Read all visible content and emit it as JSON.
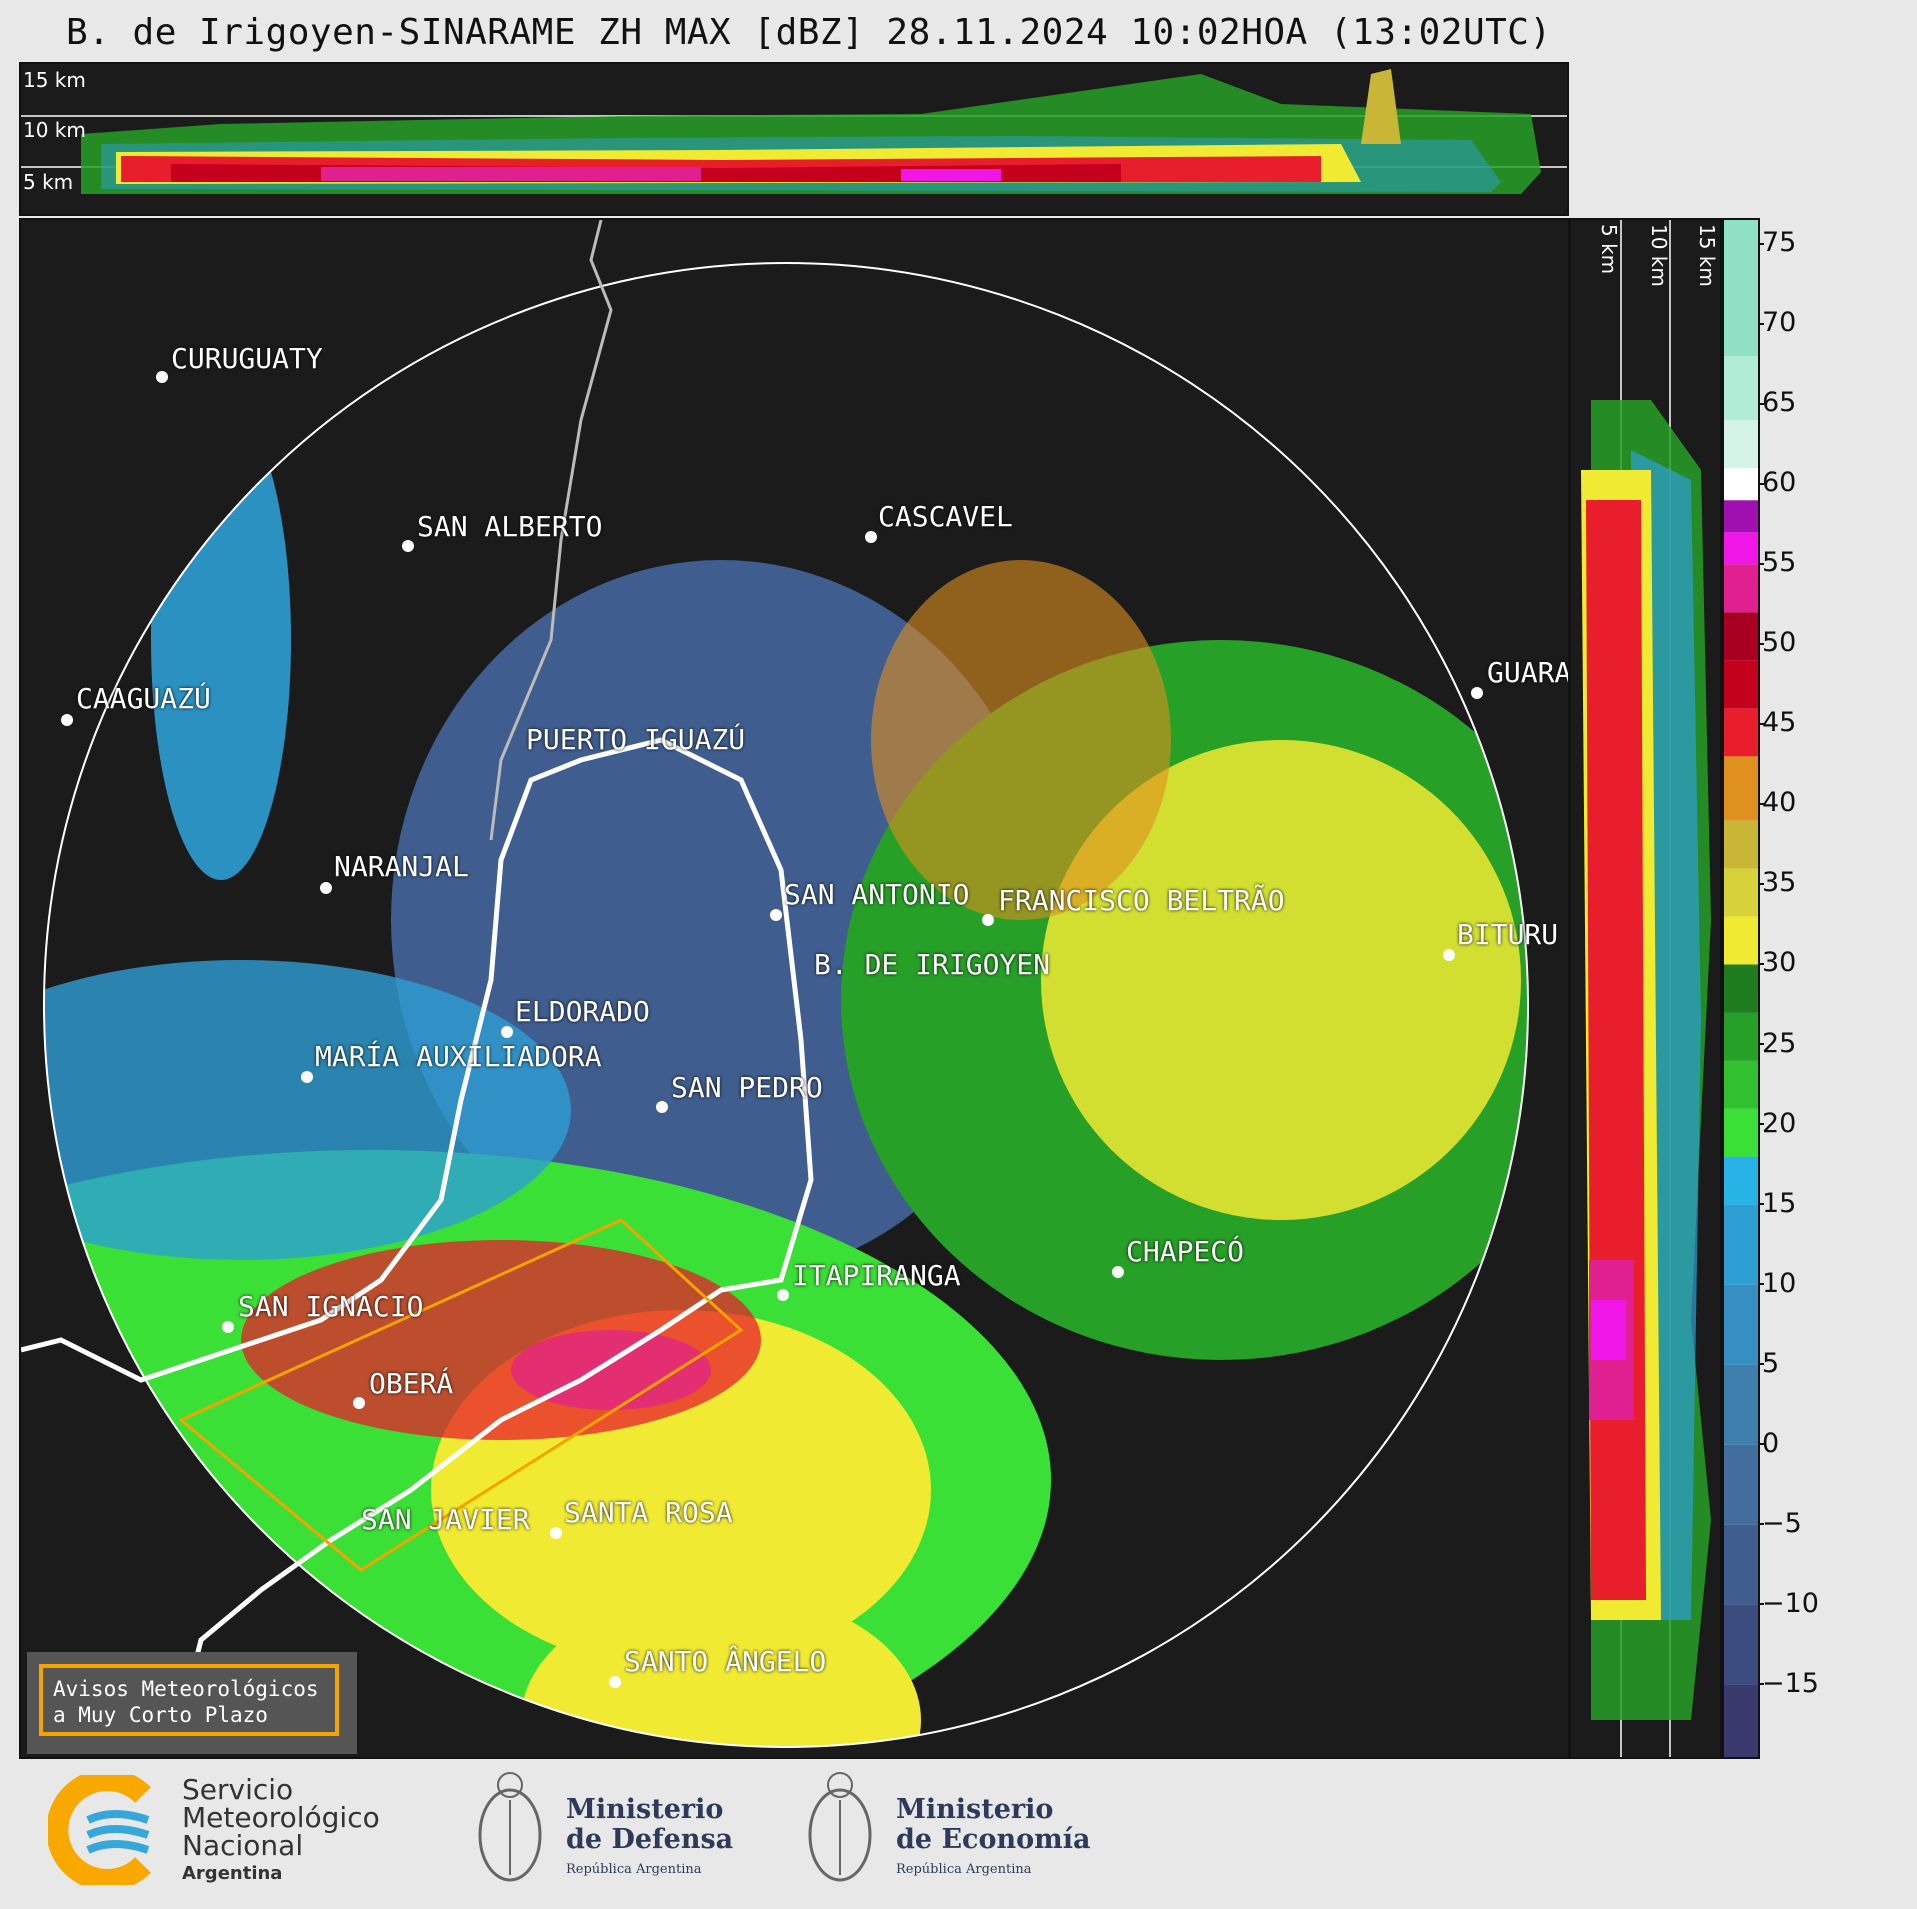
{
  "title": "B. de Irigoyen-SINARAME ZH MAX [dBZ] 28.11.2024 10:02HOA (13:02UTC)",
  "top_panel": {
    "labels": [
      "15 km",
      "10 km",
      "5 km"
    ]
  },
  "right_panel": {
    "labels": [
      "5 km",
      "10 km",
      "15 km"
    ]
  },
  "colorbar": {
    "unit": "dBZ",
    "ticks": [
      "75",
      "70",
      "65",
      "60",
      "55",
      "50",
      "45",
      "40",
      "35",
      "30",
      "25",
      "20",
      "15",
      "10",
      "5",
      "0",
      "−5",
      "−10",
      "−15"
    ],
    "tick_values": [
      75,
      70,
      65,
      60,
      55,
      50,
      45,
      40,
      35,
      30,
      25,
      20,
      15,
      10,
      5,
      0,
      -5,
      -10,
      -15
    ],
    "range": [
      -19.5,
      76.5
    ],
    "segments": [
      {
        "from": -19.5,
        "to": -15,
        "color": "#3a3a6e"
      },
      {
        "from": -15,
        "to": -10,
        "color": "#3d4c7e"
      },
      {
        "from": -10,
        "to": -5,
        "color": "#3f5d8e"
      },
      {
        "from": -5,
        "to": 0,
        "color": "#416e9c"
      },
      {
        "from": 0,
        "to": 5,
        "color": "#3f7fae"
      },
      {
        "from": 5,
        "to": 10,
        "color": "#358fc2"
      },
      {
        "from": 10,
        "to": 15,
        "color": "#2e9fd4"
      },
      {
        "from": 15,
        "to": 18,
        "color": "#27b3e6"
      },
      {
        "from": 18,
        "to": 21,
        "color": "#3ae035"
      },
      {
        "from": 21,
        "to": 24,
        "color": "#30c030"
      },
      {
        "from": 24,
        "to": 27,
        "color": "#27a027"
      },
      {
        "from": 27,
        "to": 30,
        "color": "#1f7d1f"
      },
      {
        "from": 30,
        "to": 33,
        "color": "#f1ea33"
      },
      {
        "from": 33,
        "to": 36,
        "color": "#d8d23a"
      },
      {
        "from": 36,
        "to": 39,
        "color": "#c9b637"
      },
      {
        "from": 39,
        "to": 43,
        "color": "#e0901f"
      },
      {
        "from": 43,
        "to": 46,
        "color": "#e81e2c"
      },
      {
        "from": 46,
        "to": 49,
        "color": "#c4001c"
      },
      {
        "from": 49,
        "to": 52,
        "color": "#a80020"
      },
      {
        "from": 52,
        "to": 55,
        "color": "#e02090"
      },
      {
        "from": 55,
        "to": 57,
        "color": "#f016e8"
      },
      {
        "from": 57,
        "to": 59,
        "color": "#a010b0"
      },
      {
        "from": 59,
        "to": 61,
        "color": "#ffffff"
      },
      {
        "from": 61,
        "to": 64,
        "color": "#d4f4e8"
      },
      {
        "from": 64,
        "to": 68,
        "color": "#b0ecd6"
      },
      {
        "from": 68,
        "to": 76.5,
        "color": "#8fe0c4"
      }
    ]
  },
  "map": {
    "cities": [
      {
        "name": "CURUGUATY"
      },
      {
        "name": "SAN ALBERTO"
      },
      {
        "name": "CASCAVEL"
      },
      {
        "name": "CAAGUAZÚ"
      },
      {
        "name": "GUARA"
      },
      {
        "name": "PUERTO IGUAZÚ"
      },
      {
        "name": "NARANJAL"
      },
      {
        "name": "SAN ANTONIO"
      },
      {
        "name": "FRANCISCO BELTRÃO"
      },
      {
        "name": "BITURU"
      },
      {
        "name": "B. DE IRIGOYEN"
      },
      {
        "name": "ELDORADO"
      },
      {
        "name": "MARÍA AUXILIADORA"
      },
      {
        "name": "SAN PEDRO"
      },
      {
        "name": "ITAPIRANGA"
      },
      {
        "name": "CHAPECÓ"
      },
      {
        "name": "SAN IGNACIO"
      },
      {
        "name": "OBERÁ"
      },
      {
        "name": "SAN JAVIER"
      },
      {
        "name": "SANTA ROSA"
      },
      {
        "name": "SANTO ÂNGELO"
      }
    ]
  },
  "legend": {
    "line1": "Avisos Meteorológicos",
    "line2": "a Muy Corto Plazo"
  },
  "footer": {
    "smn": {
      "line1": "Servicio",
      "line2": "Meteorológico",
      "line3": "Nacional",
      "line4": "Argentina"
    },
    "defensa": {
      "line1": "Ministerio",
      "line2": "de Defensa",
      "line3": "República Argentina"
    },
    "economia": {
      "line1": "Ministerio",
      "line2": "de Economía",
      "line3": "República Argentina"
    }
  }
}
